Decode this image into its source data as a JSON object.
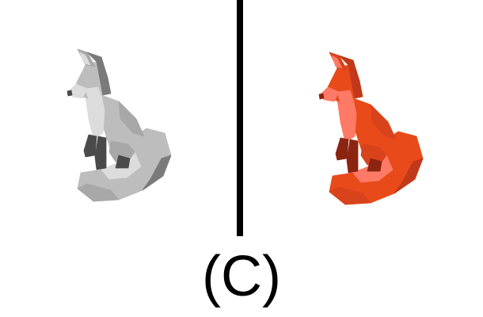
{
  "caption": "(C)",
  "figures": [
    {
      "name": "grey-untextured-fox",
      "icon": "fox-icon",
      "colors": {
        "light": "#dcdcdc",
        "base": "#bdbdbd",
        "mid": "#a8a8a8",
        "dark": "#7a7a7a",
        "shadow": "#4a4a4a"
      }
    },
    {
      "name": "orange-textured-fox",
      "icon": "fox-icon",
      "colors": {
        "light": "#ff7a66",
        "base": "#e84a1a",
        "mid": "#d9431c",
        "dark": "#c2381a",
        "shadow": "#8b2410"
      }
    }
  ],
  "divider_color": "#000000"
}
